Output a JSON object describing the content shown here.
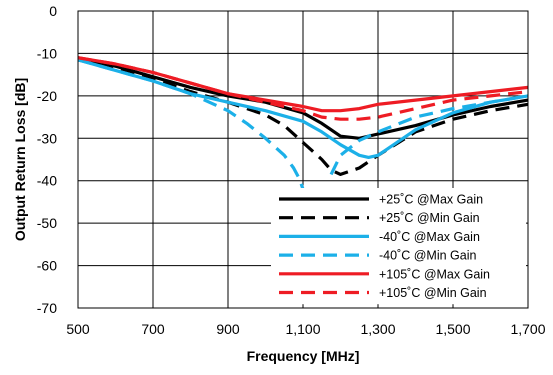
{
  "chart_data": {
    "type": "line",
    "xlabel": "Frequency [MHz]",
    "ylabel": "Output Return Loss [dB]",
    "xlim": [
      500,
      1700
    ],
    "ylim": [
      -70,
      0
    ],
    "xticks": [
      500,
      700,
      900,
      1100,
      1300,
      1500,
      1700
    ],
    "xtick_labels": [
      "500",
      "700",
      "900",
      "1,100",
      "1,300",
      "1,500",
      "1,700"
    ],
    "yticks": [
      0,
      -10,
      -20,
      -30,
      -40,
      -50,
      -60,
      -70
    ],
    "ytick_labels": [
      "0",
      "-10",
      "-20",
      "-30",
      "-40",
      "-50",
      "-60",
      "-70"
    ],
    "grid": true,
    "legend_position": "bottom-right",
    "series": [
      {
        "name": "+25˚C @Max Gain",
        "color": "#000000",
        "dash": "solid",
        "x": [
          500,
          600,
          700,
          800,
          900,
          1000,
          1100,
          1150,
          1200,
          1250,
          1300,
          1400,
          1500,
          1600,
          1700
        ],
        "y": [
          -11.5,
          -13,
          -15.5,
          -18,
          -20,
          -21.5,
          -24,
          -26.5,
          -29.5,
          -30,
          -29,
          -27,
          -24.5,
          -22.5,
          -21
        ]
      },
      {
        "name": "+25˚C @Min Gain",
        "color": "#000000",
        "dash": "dashed",
        "x": [
          500,
          600,
          700,
          800,
          900,
          1000,
          1050,
          1100,
          1150,
          1175,
          1200,
          1250,
          1300,
          1400,
          1500,
          1600,
          1700
        ],
        "y": [
          -11.5,
          -13.5,
          -16,
          -19,
          -21.5,
          -24.5,
          -27,
          -31,
          -35,
          -37.5,
          -38.5,
          -37,
          -34,
          -28.5,
          -25.5,
          -23.5,
          -22
        ]
      },
      {
        "name": "-40˚C @Max Gain",
        "color": "#1cb0e8",
        "dash": "solid",
        "x": [
          500,
          600,
          700,
          800,
          900,
          1000,
          1100,
          1150,
          1200,
          1250,
          1275,
          1300,
          1400,
          1500,
          1600,
          1700
        ],
        "y": [
          -11.5,
          -14,
          -16.5,
          -19.5,
          -21.5,
          -23.5,
          -26,
          -28.5,
          -31.5,
          -34,
          -34.5,
          -34,
          -28,
          -24,
          -21.5,
          -20
        ]
      },
      {
        "name": "-40˚C @Min Gain",
        "color": "#1cb0e8",
        "dash": "dashed",
        "x": [
          500,
          600,
          700,
          800,
          900,
          950,
          1000,
          1050,
          1075,
          1090,
          1100
        ],
        "y": [
          -11.5,
          -14,
          -16.5,
          -19.5,
          -23.5,
          -26.5,
          -30,
          -34,
          -37,
          -39.5,
          -42
        ],
        "x2": [
          1175,
          1200,
          1250,
          1300,
          1400,
          1500,
          1600,
          1700
        ],
        "y2": [
          -38.5,
          -34,
          -30.5,
          -28.5,
          -25,
          -23,
          -21.5,
          -20
        ]
      },
      {
        "name": "+105˚C @Max Gain",
        "color": "#ee1c24",
        "dash": "solid",
        "x": [
          500,
          600,
          700,
          800,
          900,
          1000,
          1100,
          1150,
          1200,
          1250,
          1300,
          1400,
          1500,
          1600,
          1700
        ],
        "y": [
          -11,
          -12.5,
          -14.5,
          -17,
          -19.5,
          -21,
          -22.5,
          -23.5,
          -23.5,
          -23,
          -22,
          -21,
          -20,
          -19,
          -18
        ]
      },
      {
        "name": "+105˚C @Min Gain",
        "color": "#ee1c24",
        "dash": "dashed",
        "x": [
          500,
          600,
          700,
          800,
          900,
          1000,
          1100,
          1150,
          1200,
          1250,
          1300,
          1400,
          1500,
          1600,
          1700
        ],
        "y": [
          -11,
          -12.5,
          -14.5,
          -17,
          -19.5,
          -21.5,
          -23.5,
          -25,
          -25.5,
          -25.5,
          -25,
          -23,
          -21,
          -20,
          -19
        ]
      }
    ]
  }
}
